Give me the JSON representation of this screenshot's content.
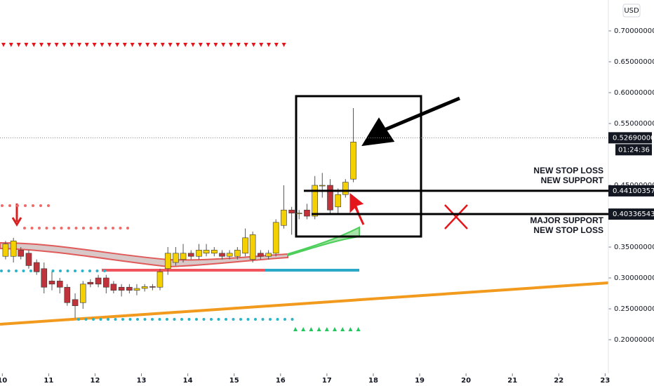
{
  "chart_data": {
    "type": "candlestick",
    "currency": "USD",
    "x": [
      10.07,
      10.24,
      10.4,
      10.57,
      10.74,
      10.9,
      11.07,
      11.24,
      11.4,
      11.57,
      11.74,
      11.9,
      12.07,
      12.24,
      12.4,
      12.57,
      12.74,
      12.9,
      13.07,
      13.24,
      13.4,
      13.57,
      13.74,
      13.9,
      14.07,
      14.24,
      14.4,
      14.57,
      14.74,
      14.9,
      15.07,
      15.24,
      15.4,
      15.57,
      15.74,
      15.9,
      16.07,
      16.24,
      16.4,
      16.57,
      16.74,
      16.9,
      17.07,
      17.24,
      17.4,
      17.57
    ],
    "open": [
      0.335,
      0.335,
      0.345,
      0.34,
      0.325,
      0.315,
      0.295,
      0.295,
      0.285,
      0.265,
      0.26,
      0.293,
      0.3,
      0.3,
      0.29,
      0.285,
      0.285,
      0.28,
      0.283,
      0.286,
      0.285,
      0.315,
      0.325,
      0.33,
      0.34,
      0.335,
      0.34,
      0.34,
      0.34,
      0.335,
      0.335,
      0.34,
      0.33,
      0.34,
      0.335,
      0.34,
      0.385,
      0.41,
      0.405,
      0.41,
      0.4,
      0.45,
      0.45,
      0.415,
      0.435,
      0.46
    ],
    "high": [
      0.36,
      0.365,
      0.35,
      0.345,
      0.33,
      0.325,
      0.31,
      0.3,
      0.29,
      0.275,
      0.295,
      0.298,
      0.305,
      0.305,
      0.295,
      0.29,
      0.29,
      0.29,
      0.29,
      0.29,
      0.315,
      0.35,
      0.35,
      0.355,
      0.345,
      0.355,
      0.355,
      0.35,
      0.345,
      0.345,
      0.35,
      0.38,
      0.375,
      0.345,
      0.345,
      0.395,
      0.45,
      0.415,
      0.41,
      0.42,
      0.465,
      0.47,
      0.46,
      0.445,
      0.46,
      0.575
    ],
    "low": [
      0.33,
      0.325,
      0.33,
      0.315,
      0.305,
      0.275,
      0.28,
      0.275,
      0.255,
      0.235,
      0.25,
      0.285,
      0.285,
      0.275,
      0.275,
      0.27,
      0.275,
      0.272,
      0.278,
      0.28,
      0.28,
      0.305,
      0.32,
      0.325,
      0.33,
      0.33,
      0.335,
      0.335,
      0.33,
      0.33,
      0.33,
      0.335,
      0.325,
      0.33,
      0.33,
      0.335,
      0.38,
      0.37,
      0.395,
      0.395,
      0.395,
      0.43,
      0.405,
      0.405,
      0.43,
      0.455
    ],
    "close": [
      0.355,
      0.36,
      0.335,
      0.32,
      0.31,
      0.285,
      0.29,
      0.285,
      0.26,
      0.255,
      0.29,
      0.29,
      0.29,
      0.285,
      0.28,
      0.28,
      0.28,
      0.283,
      0.286,
      0.285,
      0.31,
      0.34,
      0.34,
      0.34,
      0.335,
      0.345,
      0.345,
      0.345,
      0.335,
      0.34,
      0.345,
      0.365,
      0.37,
      0.335,
      0.34,
      0.39,
      0.41,
      0.405,
      0.405,
      0.4,
      0.45,
      0.45,
      0.41,
      0.435,
      0.455,
      0.52
    ],
    "up_color": "#f5d000",
    "down_color": "#c0333a",
    "xlim": [
      9.95,
      23.07
    ],
    "xticks": [
      10,
      11,
      12,
      13,
      14,
      15,
      16,
      17,
      18,
      19,
      20,
      21,
      22,
      23
    ],
    "ylim": [
      0.1455,
      0.75
    ],
    "yticks": [
      {
        "value": 0.2,
        "label": "0.20000000"
      },
      {
        "value": 0.25,
        "label": "0.25000000"
      },
      {
        "value": 0.3,
        "label": "0.30000000"
      },
      {
        "value": 0.35,
        "label": "0.35000000"
      },
      {
        "value": 0.45,
        "label": "0.45000000"
      },
      {
        "value": 0.55,
        "label": "0.55000000"
      },
      {
        "value": 0.6,
        "label": "0.60000000"
      },
      {
        "value": 0.65,
        "label": "0.65000000"
      },
      {
        "value": 0.7,
        "label": "0.70000000"
      }
    ],
    "last_price": {
      "value": 0.5269,
      "label": "0.52690000"
    },
    "countdown": "01:24:36",
    "levels": [
      {
        "value": 0.44100357,
        "label": "0.44100357",
        "annotation": [
          "NEW STOP LOSS",
          "NEW SUPPORT"
        ]
      },
      {
        "value": 0.40336543,
        "label": "0.40336543",
        "annotation": [
          "MAJOR SUPPORT",
          "NEW STOP LOSS"
        ]
      }
    ]
  }
}
